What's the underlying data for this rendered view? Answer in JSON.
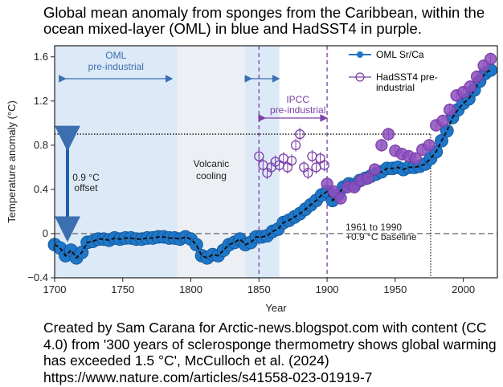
{
  "title": "Global mean anomaly from sponges from the Caribbean, within the ocean mixed-layer (OML) in blue and HadSST4 in purple.",
  "footer": "Created by Sam Carana for Arctic-news.blogspot.com with content (CC 4.0) from '300 years of sclerosponge thermometry shows global warming has exceeded 1.5 °C', McCulloch et al. (2024)  https://www.nature.com/articles/s41558-023-01919-7",
  "chart_data": {
    "type": "scatter",
    "xlabel": "Year",
    "ylabel": "Temperature anomaly (°C)",
    "xlim": [
      1700,
      2025
    ],
    "ylim": [
      -0.4,
      1.7
    ],
    "xticks": [
      1700,
      1750,
      1800,
      1850,
      1900,
      1950,
      2000
    ],
    "yticks": [
      -0.4,
      0,
      0.4,
      0.8,
      1.2,
      1.6
    ],
    "ytick_labels": [
      "−0.4",
      "0",
      "0.4",
      "0.8",
      "1.2",
      "1.6"
    ],
    "legend": {
      "position": "top-right",
      "entries": [
        "OML Sr/Ca",
        "HadSST4 pre-\nindustrial"
      ]
    },
    "regions": [
      {
        "label": "OML\npre-industrial",
        "x": [
          1700,
          1790
        ],
        "color": "#dce9f7"
      },
      {
        "label": "Volcanic\ncooling",
        "x": [
          1790,
          1840
        ],
        "color": "#eceff4"
      },
      {
        "label": "",
        "x": [
          1840,
          1865
        ],
        "color": "#dce9f7"
      }
    ],
    "ipcc_label": "IPCC\npre-industrial",
    "ipcc_range": [
      1850,
      1900
    ],
    "offset_label": "0.9 °C\noffset",
    "baseline_label": "1961 to 1990\n+0.9 °C baseline",
    "reference_line_y": 0.9,
    "baseline_y": 0,
    "marker_year": 1976,
    "series": [
      {
        "name": "OML Sr/Ca",
        "color": "#1f77c9",
        "x": [
          1700,
          1704,
          1708,
          1712,
          1716,
          1720,
          1724,
          1728,
          1732,
          1736,
          1740,
          1744,
          1748,
          1752,
          1756,
          1760,
          1764,
          1768,
          1772,
          1776,
          1780,
          1784,
          1788,
          1792,
          1796,
          1800,
          1804,
          1808,
          1812,
          1816,
          1820,
          1824,
          1828,
          1832,
          1836,
          1840,
          1844,
          1848,
          1852,
          1856,
          1860,
          1864,
          1868,
          1872,
          1876,
          1880,
          1884,
          1888,
          1892,
          1896,
          1900,
          1904,
          1908,
          1912,
          1916,
          1920,
          1924,
          1928,
          1932,
          1936,
          1940,
          1944,
          1948,
          1952,
          1956,
          1960,
          1964,
          1968,
          1972,
          1976,
          1980,
          1984,
          1988,
          1992,
          1996,
          2000,
          2004,
          2008,
          2012,
          2016,
          2020
        ],
        "y": [
          -0.1,
          -0.13,
          -0.2,
          -0.15,
          -0.22,
          -0.17,
          -0.08,
          -0.07,
          -0.05,
          -0.05,
          -0.06,
          -0.04,
          -0.05,
          -0.04,
          -0.04,
          -0.05,
          -0.05,
          -0.04,
          -0.04,
          -0.03,
          -0.03,
          -0.04,
          -0.04,
          -0.05,
          -0.03,
          -0.05,
          -0.1,
          -0.2,
          -0.22,
          -0.19,
          -0.2,
          -0.15,
          -0.1,
          -0.08,
          -0.05,
          -0.1,
          -0.08,
          -0.03,
          -0.03,
          -0.02,
          0.02,
          0.04,
          0.1,
          0.12,
          0.15,
          0.18,
          0.22,
          0.26,
          0.3,
          0.35,
          0.38,
          0.3,
          0.35,
          0.42,
          0.45,
          0.44,
          0.48,
          0.5,
          0.52,
          0.54,
          0.56,
          0.59,
          0.59,
          0.6,
          0.58,
          0.6,
          0.6,
          0.61,
          0.63,
          0.68,
          0.74,
          0.84,
          0.93,
          1.05,
          1.12,
          1.18,
          1.22,
          1.3,
          1.38,
          1.45,
          1.48
        ]
      },
      {
        "name": "HadSST4 pre-industrial",
        "color": "#7b3fa6",
        "x": [
          1850,
          1853,
          1856,
          1859,
          1862,
          1865,
          1868,
          1871,
          1874,
          1877,
          1880,
          1883,
          1886,
          1889,
          1892,
          1895,
          1898,
          1900,
          1905,
          1910,
          1915,
          1920,
          1925,
          1930,
          1935,
          1940,
          1945,
          1950,
          1955,
          1960,
          1965,
          1970,
          1975,
          1980,
          1985,
          1990,
          1995,
          2000,
          2005,
          2010,
          2015,
          2020
        ],
        "y": [
          0.7,
          0.62,
          0.55,
          0.6,
          0.65,
          0.62,
          0.68,
          0.6,
          0.66,
          0.8,
          0.9,
          0.6,
          0.55,
          0.7,
          0.6,
          0.68,
          0.62,
          0.45,
          0.38,
          0.32,
          0.42,
          0.42,
          0.48,
          0.5,
          0.58,
          0.8,
          0.9,
          0.75,
          0.72,
          0.7,
          0.68,
          0.76,
          0.8,
          0.98,
          1.02,
          1.12,
          1.25,
          1.28,
          1.33,
          1.42,
          1.52,
          1.58
        ]
      }
    ]
  }
}
